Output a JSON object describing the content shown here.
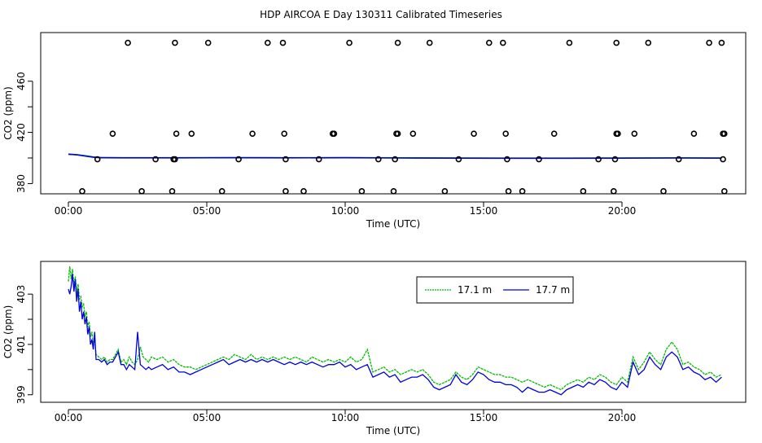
{
  "title": "HDP AIRCOA E  Day 130311  Calibrated Timeseries",
  "chart_data": [
    {
      "type": "line",
      "xlabel": "Time (UTC)",
      "ylabel": "CO2 (ppm)",
      "xlim": [
        0,
        24
      ],
      "ylim": [
        372,
        498
      ],
      "x_ticks": [
        0,
        5,
        10,
        15,
        20
      ],
      "x_tick_labels": [
        "00:00",
        "05:00",
        "10:00",
        "15:00",
        "20:00"
      ],
      "y_ticks": [
        380,
        420,
        460
      ],
      "y_tick_labels": [
        "380",
        "420",
        "460"
      ],
      "series": [
        {
          "color": "#00bb00",
          "x": [
            0.0,
            0.3,
            0.6,
            0.9,
            1.2,
            2,
            4,
            6,
            8,
            10,
            12,
            14,
            16,
            18,
            20,
            22,
            23.6
          ],
          "y": [
            402.8,
            402.6,
            401.8,
            400.8,
            400.3,
            400.2,
            400.2,
            400.3,
            400.2,
            400.3,
            400.1,
            400.0,
            399.9,
            399.9,
            400.0,
            400.1,
            400.0
          ]
        },
        {
          "color": "#0000dd",
          "x": [
            0.0,
            0.3,
            0.6,
            0.9,
            1.2,
            2,
            4,
            6,
            8,
            10,
            12,
            14,
            16,
            18,
            20,
            22,
            23.6
          ],
          "y": [
            403.0,
            402.5,
            401.5,
            400.6,
            400.2,
            400.1,
            400.1,
            400.2,
            400.1,
            400.2,
            400.0,
            399.9,
            399.8,
            399.8,
            399.9,
            400.0,
            399.9
          ]
        }
      ],
      "points": {
        "x": [
          0.5,
          1.05,
          1.6,
          2.15,
          2.65,
          3.15,
          3.75,
          3.8,
          3.9,
          3.85,
          3.85,
          4.45,
          5.05,
          5.55,
          6.15,
          6.65,
          7.2,
          7.75,
          7.8,
          7.85,
          7.85,
          8.5,
          9.05,
          9.55,
          9.6,
          10.15,
          10.6,
          11.2,
          11.75,
          11.8,
          11.85,
          11.9,
          11.9,
          12.45,
          13.05,
          13.6,
          14.1,
          14.65,
          15.2,
          15.7,
          15.8,
          15.85,
          15.9,
          16.4,
          17.0,
          17.55,
          18.1,
          18.6,
          19.15,
          19.7,
          19.75,
          19.8,
          19.8,
          19.85,
          20.45,
          20.95,
          21.5,
          22.05,
          22.6,
          23.15,
          23.6,
          23.65,
          23.65,
          23.7,
          23.7
        ],
        "y": [
          374,
          399,
          419,
          490,
          374,
          399,
          374,
          399,
          419,
          490,
          399,
          419,
          490,
          374,
          399,
          419,
          490,
          490,
          419,
          374,
          399,
          374,
          399,
          419,
          419,
          490,
          374,
          399,
          374,
          399,
          419,
          419,
          490,
          419,
          490,
          374,
          399,
          419,
          490,
          490,
          419,
          399,
          374,
          374,
          399,
          419,
          490,
          374,
          399,
          374,
          399,
          419,
          490,
          419,
          419,
          490,
          374,
          399,
          419,
          490,
          490,
          419,
          399,
          374,
          419
        ]
      }
    },
    {
      "type": "line",
      "xlabel": "Time (UTC)",
      "ylabel": "CO2 (ppm)",
      "xlim": [
        0,
        24
      ],
      "ylim": [
        398.7,
        404.3
      ],
      "x_ticks": [
        0,
        5,
        10,
        15,
        20
      ],
      "x_tick_labels": [
        "00:00",
        "05:00",
        "10:00",
        "15:00",
        "20:00"
      ],
      "y_ticks": [
        399,
        401,
        403
      ],
      "y_tick_labels": [
        "399",
        "401",
        "403"
      ],
      "legend_position": "top-right",
      "series": [
        {
          "name": "17.1 m",
          "color": "#00bb00",
          "x": [
            0.0,
            0.05,
            0.1,
            0.15,
            0.2,
            0.25,
            0.3,
            0.35,
            0.4,
            0.45,
            0.5,
            0.55,
            0.6,
            0.65,
            0.7,
            0.75,
            0.8,
            0.85,
            0.9,
            0.95,
            1.0,
            1.1,
            1.2,
            1.3,
            1.4,
            1.5,
            1.6,
            1.7,
            1.8,
            1.9,
            2.0,
            2.1,
            2.2,
            2.3,
            2.4,
            2.5,
            2.6,
            2.7,
            2.8,
            2.9,
            3.0,
            3.2,
            3.4,
            3.6,
            3.8,
            4.0,
            4.2,
            4.4,
            4.6,
            4.8,
            5.0,
            5.2,
            5.4,
            5.6,
            5.8,
            6.0,
            6.2,
            6.4,
            6.6,
            6.8,
            7.0,
            7.2,
            7.4,
            7.6,
            7.8,
            8.0,
            8.2,
            8.4,
            8.6,
            8.8,
            9.0,
            9.2,
            9.4,
            9.6,
            9.8,
            10.0,
            10.2,
            10.4,
            10.6,
            10.8,
            11.0,
            11.2,
            11.4,
            11.6,
            11.8,
            12.0,
            12.2,
            12.4,
            12.6,
            12.8,
            13.0,
            13.2,
            13.4,
            13.6,
            13.8,
            14.0,
            14.2,
            14.4,
            14.6,
            14.8,
            15.0,
            15.2,
            15.4,
            15.6,
            15.8,
            16.0,
            16.2,
            16.4,
            16.6,
            16.8,
            17.0,
            17.2,
            17.4,
            17.6,
            17.8,
            18.0,
            18.2,
            18.4,
            18.6,
            18.8,
            19.0,
            19.2,
            19.4,
            19.6,
            19.8,
            20.0,
            20.2,
            20.4,
            20.6,
            20.8,
            21.0,
            21.2,
            21.4,
            21.6,
            21.8,
            22.0,
            22.2,
            22.4,
            22.6,
            22.8,
            23.0,
            23.2,
            23.4,
            23.6
          ],
          "y": [
            403.5,
            404.1,
            403.6,
            404.0,
            403.3,
            403.7,
            403.0,
            403.4,
            402.8,
            402.9,
            402.5,
            402.6,
            402.1,
            402.3,
            401.7,
            401.9,
            401.3,
            401.5,
            401.0,
            401.2,
            400.6,
            400.5,
            400.4,
            400.5,
            400.3,
            400.4,
            400.4,
            400.6,
            400.8,
            400.3,
            400.4,
            400.2,
            400.5,
            400.3,
            400.2,
            400.4,
            400.9,
            400.5,
            400.4,
            400.3,
            400.5,
            400.4,
            400.5,
            400.3,
            400.4,
            400.2,
            400.1,
            400.1,
            400.0,
            400.1,
            400.2,
            400.3,
            400.4,
            400.5,
            400.4,
            400.6,
            400.5,
            400.4,
            400.6,
            400.4,
            400.5,
            400.4,
            400.5,
            400.4,
            400.5,
            400.4,
            400.5,
            400.4,
            400.3,
            400.5,
            400.4,
            400.3,
            400.4,
            400.3,
            400.4,
            400.3,
            400.5,
            400.3,
            400.4,
            400.8,
            399.9,
            400.0,
            400.1,
            399.9,
            400.0,
            399.8,
            399.9,
            400.0,
            399.9,
            400.0,
            399.8,
            399.5,
            399.4,
            399.5,
            399.6,
            399.9,
            399.7,
            399.6,
            399.8,
            400.1,
            400.0,
            399.9,
            399.8,
            399.8,
            399.7,
            399.7,
            399.6,
            399.5,
            399.6,
            399.5,
            399.4,
            399.3,
            399.4,
            399.3,
            399.2,
            399.4,
            399.5,
            399.6,
            399.5,
            399.7,
            399.6,
            399.8,
            399.7,
            399.5,
            399.4,
            399.7,
            399.5,
            400.5,
            400.0,
            400.3,
            400.7,
            400.4,
            400.2,
            400.8,
            401.1,
            400.8,
            400.2,
            400.3,
            400.1,
            400.0,
            399.8,
            399.9,
            399.7,
            399.8
          ]
        },
        {
          "name": "17.7 m",
          "color": "#0000dd",
          "x": [
            0.0,
            0.05,
            0.1,
            0.15,
            0.2,
            0.25,
            0.3,
            0.35,
            0.4,
            0.45,
            0.5,
            0.55,
            0.6,
            0.65,
            0.7,
            0.75,
            0.8,
            0.85,
            0.9,
            0.95,
            1.0,
            1.1,
            1.2,
            1.3,
            1.4,
            1.5,
            1.6,
            1.7,
            1.8,
            1.9,
            2.0,
            2.1,
            2.2,
            2.3,
            2.4,
            2.5,
            2.6,
            2.7,
            2.8,
            2.9,
            3.0,
            3.2,
            3.4,
            3.6,
            3.8,
            4.0,
            4.2,
            4.4,
            4.6,
            4.8,
            5.0,
            5.2,
            5.4,
            5.6,
            5.8,
            6.0,
            6.2,
            6.4,
            6.6,
            6.8,
            7.0,
            7.2,
            7.4,
            7.6,
            7.8,
            8.0,
            8.2,
            8.4,
            8.6,
            8.8,
            9.0,
            9.2,
            9.4,
            9.6,
            9.8,
            10.0,
            10.2,
            10.4,
            10.6,
            10.8,
            11.0,
            11.2,
            11.4,
            11.6,
            11.8,
            12.0,
            12.2,
            12.4,
            12.6,
            12.8,
            13.0,
            13.2,
            13.4,
            13.6,
            13.8,
            14.0,
            14.2,
            14.4,
            14.6,
            14.8,
            15.0,
            15.2,
            15.4,
            15.6,
            15.8,
            16.0,
            16.2,
            16.4,
            16.6,
            16.8,
            17.0,
            17.2,
            17.4,
            17.6,
            17.8,
            18.0,
            18.2,
            18.4,
            18.6,
            18.8,
            19.0,
            19.2,
            19.4,
            19.6,
            19.8,
            20.0,
            20.2,
            20.4,
            20.6,
            20.8,
            21.0,
            21.2,
            21.4,
            21.6,
            21.8,
            22.0,
            22.2,
            22.4,
            22.6,
            22.8,
            23.0,
            23.2,
            23.4,
            23.6
          ],
          "y": [
            403.2,
            403.0,
            403.3,
            403.8,
            403.1,
            403.6,
            402.7,
            403.2,
            402.3,
            402.7,
            402.0,
            402.3,
            401.8,
            402.1,
            401.4,
            401.7,
            401.0,
            401.2,
            400.8,
            401.5,
            400.4,
            400.4,
            400.3,
            400.4,
            400.2,
            400.3,
            400.3,
            400.5,
            400.7,
            400.2,
            400.2,
            400.0,
            400.2,
            400.1,
            400.0,
            401.5,
            400.2,
            400.1,
            400.0,
            400.1,
            400.0,
            400.1,
            400.2,
            400.0,
            400.1,
            399.9,
            399.9,
            399.8,
            399.9,
            400.0,
            400.1,
            400.2,
            400.3,
            400.4,
            400.2,
            400.3,
            400.4,
            400.3,
            400.4,
            400.3,
            400.4,
            400.3,
            400.4,
            400.3,
            400.2,
            400.3,
            400.2,
            400.3,
            400.2,
            400.3,
            400.2,
            400.1,
            400.2,
            400.2,
            400.3,
            400.1,
            400.2,
            400.0,
            400.1,
            400.2,
            399.7,
            399.8,
            399.9,
            399.7,
            399.8,
            399.5,
            399.6,
            399.7,
            399.7,
            399.8,
            399.6,
            399.3,
            399.2,
            399.3,
            399.4,
            399.8,
            399.5,
            399.4,
            399.6,
            399.9,
            399.8,
            399.6,
            399.5,
            399.5,
            399.4,
            399.4,
            399.3,
            399.1,
            399.3,
            399.2,
            399.1,
            399.1,
            399.2,
            399.1,
            399.0,
            399.2,
            399.3,
            399.4,
            399.3,
            399.5,
            399.4,
            399.6,
            399.5,
            399.3,
            399.2,
            399.5,
            399.3,
            400.3,
            399.8,
            400.0,
            400.5,
            400.2,
            400.0,
            400.5,
            400.7,
            400.5,
            400.0,
            400.1,
            399.9,
            399.8,
            399.6,
            399.7,
            399.5,
            399.7
          ]
        }
      ]
    }
  ]
}
